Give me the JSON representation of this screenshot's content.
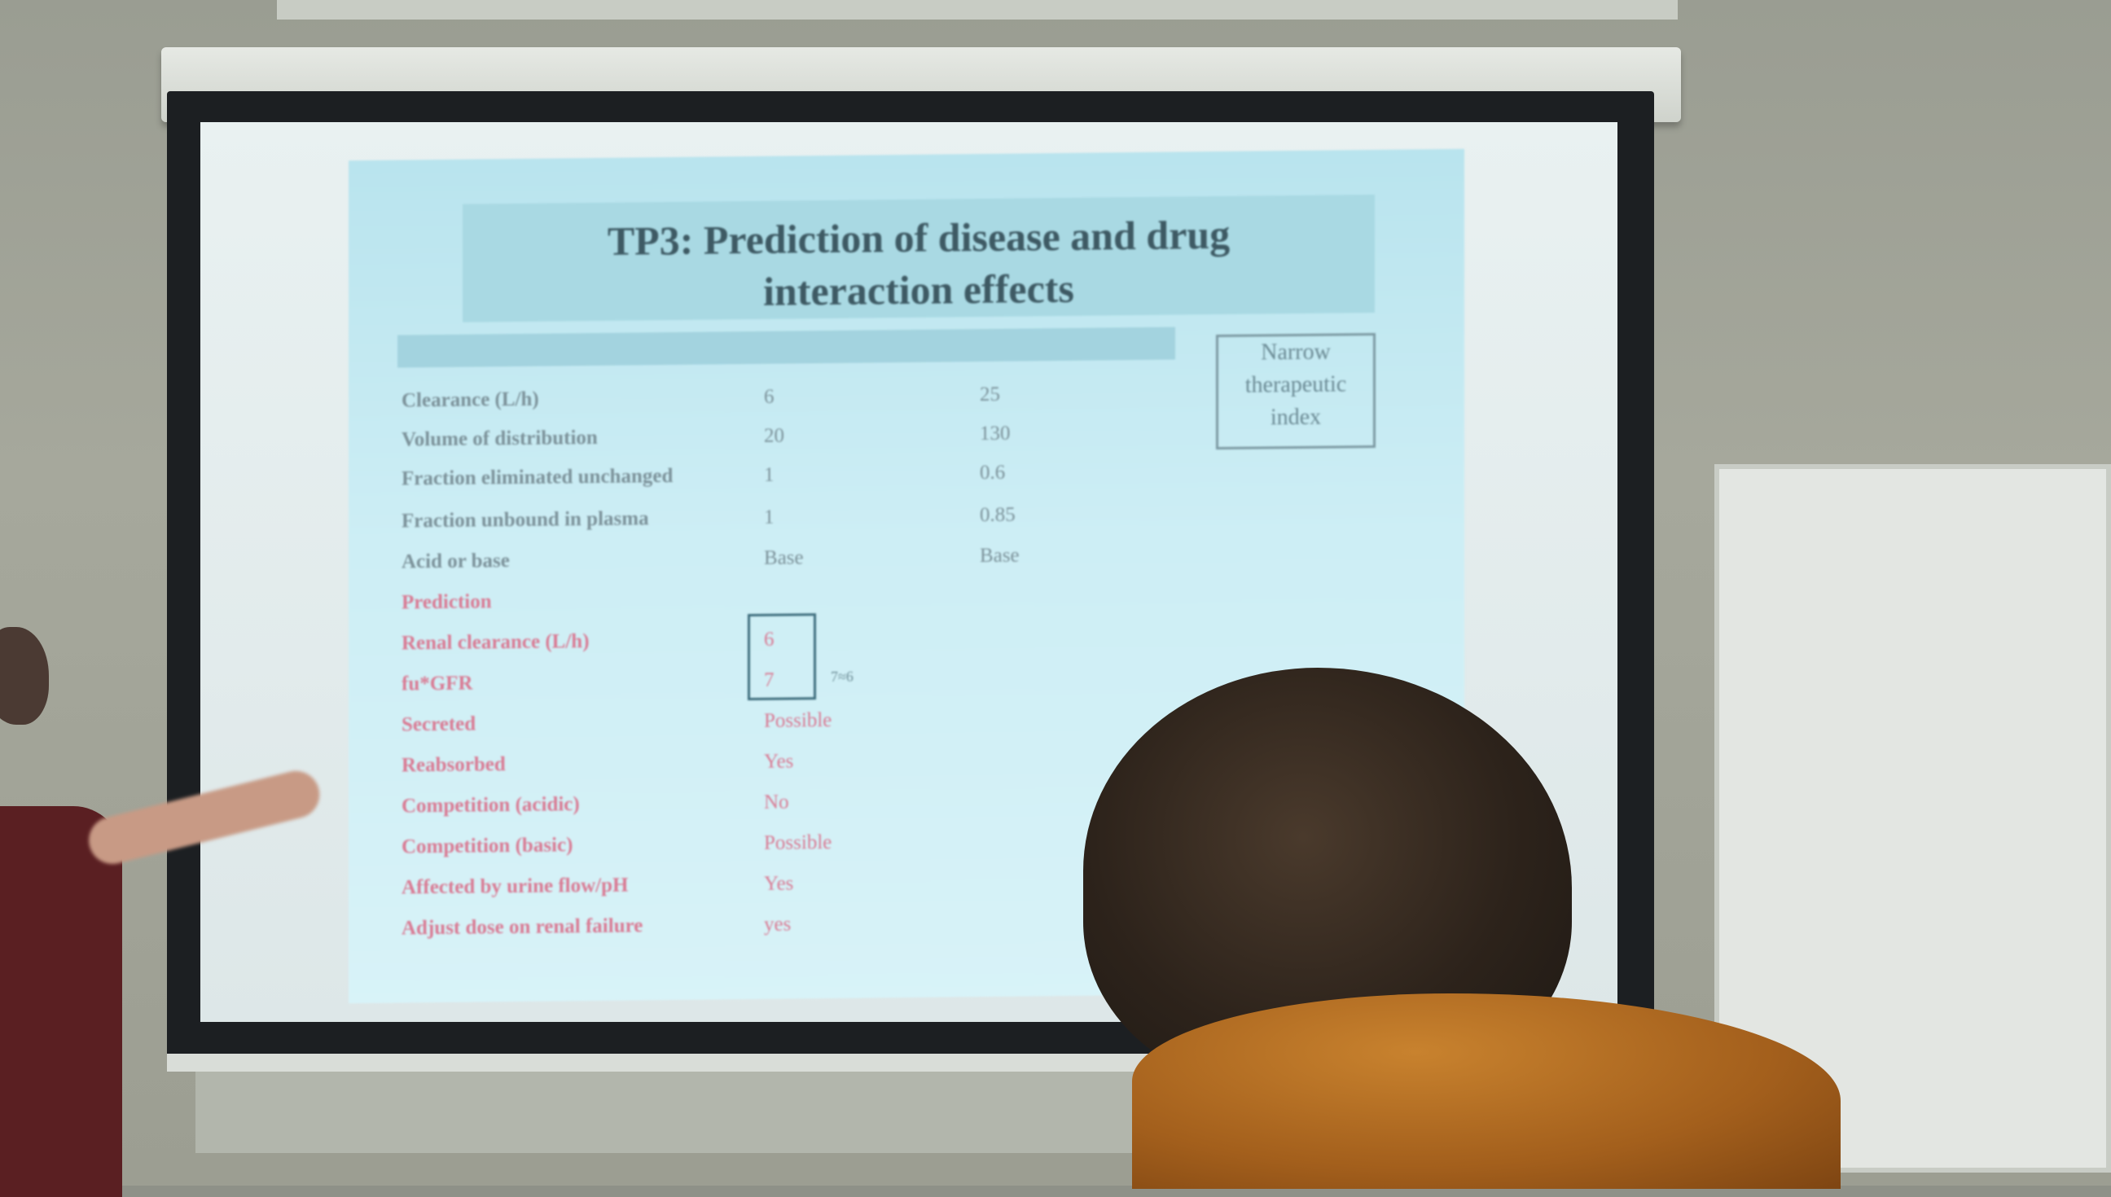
{
  "slide": {
    "title_line1": "TP3: Prediction of disease and drug",
    "title_line2": "interaction effects",
    "header": [
      "",
      "",
      ""
    ],
    "note": [
      "Narrow",
      "therapeutic",
      "index"
    ],
    "rows_top": [
      {
        "param": "Clearance (L/h)",
        "v1": "6",
        "v2": "25"
      },
      {
        "param": "Volume of distribution",
        "v1": "20",
        "v2": "130"
      },
      {
        "param": "Fraction eliminated unchanged",
        "v1": "1",
        "v2": "0.6"
      },
      {
        "param": "Fraction unbound in plasma",
        "v1": "1",
        "v2": "0.85"
      },
      {
        "param": "Acid or base",
        "v1": "Base",
        "v2": "Base"
      }
    ],
    "rows_bottom": [
      {
        "param": "Prediction",
        "v1": ""
      },
      {
        "param": "Renal clearance (L/h)",
        "v1": "6"
      },
      {
        "param": "fu*GFR",
        "v1": "7"
      },
      {
        "param": "Secreted",
        "v1": "Possible"
      },
      {
        "param": "Reabsorbed",
        "v1": "Yes"
      },
      {
        "param": "Competition (acidic)",
        "v1": "No"
      },
      {
        "param": "Competition (basic)",
        "v1": "Possible"
      },
      {
        "param": "Affected by urine flow/pH",
        "v1": "Yes"
      },
      {
        "param": "Adjust dose on renal failure",
        "v1": "yes"
      }
    ],
    "unit_note": "7≈6"
  },
  "colors": {
    "slide_bg": "#c6eaf2",
    "title_band": "#a9d9e3",
    "title_text": "#3e5a64",
    "pink_text": "#d97b94",
    "grey_text": "#7c929a"
  }
}
